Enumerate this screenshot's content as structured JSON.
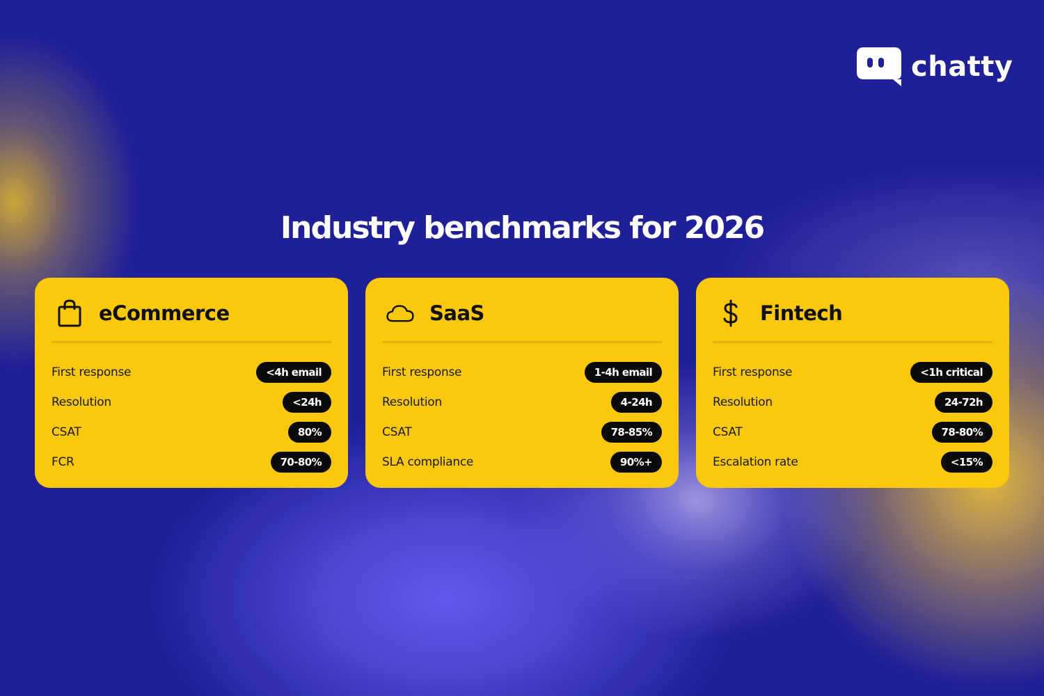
{
  "brand": {
    "name": "chatty"
  },
  "title": "Industry benchmarks for 2026",
  "colors": {
    "background": "#1f1f98",
    "card": "#fcc80c",
    "pill": "#0a0a0a",
    "accent_glow": "#e8be28"
  },
  "cards": [
    {
      "icon": "shopping-bag-icon",
      "title": "eCommerce",
      "rows": [
        {
          "label": "First response",
          "value": "<4h email"
        },
        {
          "label": "Resolution",
          "value": "<24h"
        },
        {
          "label": "CSAT",
          "value": "80%"
        },
        {
          "label": "FCR",
          "value": "70-80%"
        }
      ]
    },
    {
      "icon": "cloud-icon",
      "title": "SaaS",
      "rows": [
        {
          "label": "First response",
          "value": "1-4h email"
        },
        {
          "label": "Resolution",
          "value": "4-24h"
        },
        {
          "label": "CSAT",
          "value": "78-85%"
        },
        {
          "label": "SLA compliance",
          "value": "90%+"
        }
      ]
    },
    {
      "icon": "dollar-icon",
      "title": "Fintech",
      "rows": [
        {
          "label": "First response",
          "value": "<1h critical"
        },
        {
          "label": "Resolution",
          "value": "24-72h"
        },
        {
          "label": "CSAT",
          "value": "78-80%"
        },
        {
          "label": "Escalation rate",
          "value": "<15%"
        }
      ]
    }
  ]
}
